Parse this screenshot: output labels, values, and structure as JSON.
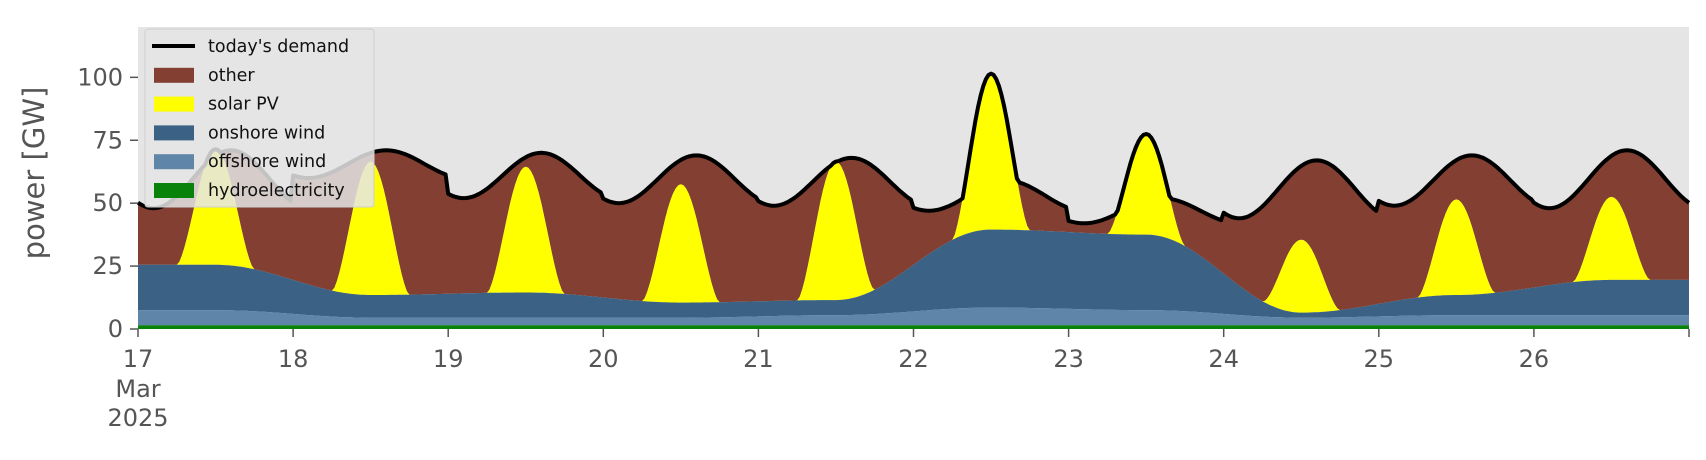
{
  "chart_data": {
    "type": "area",
    "title": "",
    "xlabel": "",
    "ylabel": "power [GW]",
    "ylim": [
      0,
      120
    ],
    "xlim": [
      "2025-03-17T00:00",
      "2025-03-27T00:00"
    ],
    "yticks": [
      "0",
      "25",
      "50",
      "75",
      "100"
    ],
    "xticks": [
      "17",
      "18",
      "19",
      "20",
      "21",
      "22",
      "23",
      "24",
      "25",
      "26"
    ],
    "x_first_month": "Mar",
    "x_first_year": "2025",
    "grid": false,
    "legend_position": "top-left",
    "colors": {
      "demand": "#000000",
      "other": "#823f32",
      "solar": "#ffff00",
      "onshore": "#3b6184",
      "offshore": "#5f86a9",
      "hydro": "#098209",
      "background": "#e5e5e5"
    },
    "legend": [
      {
        "key": "demand",
        "label": "today's demand",
        "kind": "line"
      },
      {
        "key": "other",
        "label": "other",
        "kind": "patch"
      },
      {
        "key": "solar",
        "label": "solar PV",
        "kind": "patch"
      },
      {
        "key": "onshore",
        "label": "onshore wind",
        "kind": "patch"
      },
      {
        "key": "offshore",
        "label": "offshore wind",
        "kind": "patch"
      },
      {
        "key": "hydro",
        "label": "hydroelectricity",
        "kind": "patch"
      }
    ],
    "days": [
      "2025-03-17",
      "2025-03-18",
      "2025-03-19",
      "2025-03-20",
      "2025-03-21",
      "2025-03-22",
      "2025-03-23",
      "2025-03-24",
      "2025-03-25",
      "2025-03-26"
    ],
    "series": [
      {
        "key": "hydro",
        "name": "hydroelectricity",
        "daily": [
          1.5,
          1.5,
          1.5,
          1.5,
          1.5,
          1.5,
          1.5,
          1.5,
          1.5,
          1.5
        ]
      },
      {
        "key": "offshore",
        "name": "offshore wind",
        "daily": [
          6,
          3,
          3,
          3,
          4,
          7,
          6,
          3,
          4,
          4
        ]
      },
      {
        "key": "onshore",
        "name": "onshore wind",
        "daily": [
          18,
          9,
          10,
          6,
          6,
          31,
          30,
          2,
          8,
          14
        ]
      },
      {
        "key": "solar",
        "name": "solar PV",
        "daily_peak": [
          46,
          53,
          50,
          47,
          55,
          62,
          40,
          29,
          38,
          33
        ]
      }
    ],
    "demand": {
      "name": "today's demand",
      "daily_peak": [
        71,
        71,
        70,
        69,
        68,
        59,
        52,
        67,
        69,
        71
      ],
      "daily_trough": [
        48,
        60,
        52,
        50,
        49,
        47,
        42,
        44,
        49,
        48
      ]
    }
  }
}
